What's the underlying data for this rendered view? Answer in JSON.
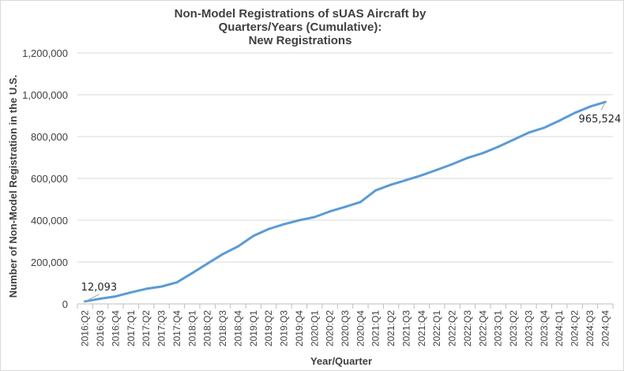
{
  "chart_data": {
    "type": "line",
    "title": [
      "Non-Model Registrations of sUAS Aircraft by",
      "Quarters/Years (Cumulative):",
      "New Registrations"
    ],
    "xlabel": "Year/Quarter",
    "ylabel": "Number of Non-Model Registration in the U.S.",
    "ylim": [
      0,
      1200000
    ],
    "yticks": [
      0,
      200000,
      400000,
      600000,
      800000,
      1000000,
      1200000
    ],
    "ytick_labels": [
      "0",
      "200,000",
      "400,000",
      "600,000",
      "800,000",
      "1,000,000",
      "1,200,000"
    ],
    "grid": true,
    "legend": "none",
    "color": "#5b9bd5",
    "categories": [
      "2016:Q2",
      "2016:Q3",
      "2016:Q4",
      "2017:Q1",
      "2017:Q2",
      "2017:Q3",
      "2017:Q4",
      "2018:Q1",
      "2018:Q2",
      "2018:Q3",
      "2018:Q4",
      "2019:Q1",
      "2019:Q2",
      "2019:Q3",
      "2019:Q4",
      "2020:Q1",
      "2020:Q2",
      "2020:Q3",
      "2020:Q4",
      "2021:Q1",
      "2021:Q2",
      "2021:Q3",
      "2021:Q4",
      "2022:Q1",
      "2022:Q2",
      "2022:Q3",
      "2022:Q4",
      "2023:Q1",
      "2023:Q2",
      "2023:Q3",
      "2023:Q4",
      "2024:Q1",
      "2024:Q2",
      "2024:Q3",
      "2024:Q4"
    ],
    "series": [
      {
        "name": "New Registrations",
        "values": [
          12093,
          25000,
          36000,
          55000,
          72000,
          83000,
          103000,
          147000,
          193000,
          238000,
          275000,
          325000,
          358000,
          381000,
          400000,
          415000,
          442000,
          464000,
          487000,
          543000,
          570000,
          592000,
          615000,
          641000,
          668000,
          698000,
          721000,
          751000,
          785000,
          819000,
          842000,
          876000,
          913000,
          943000,
          965524
        ]
      }
    ],
    "annotations": [
      {
        "category": "2016:Q2",
        "text": "12,093"
      },
      {
        "category": "2024:Q4",
        "text": "965,524"
      }
    ]
  }
}
